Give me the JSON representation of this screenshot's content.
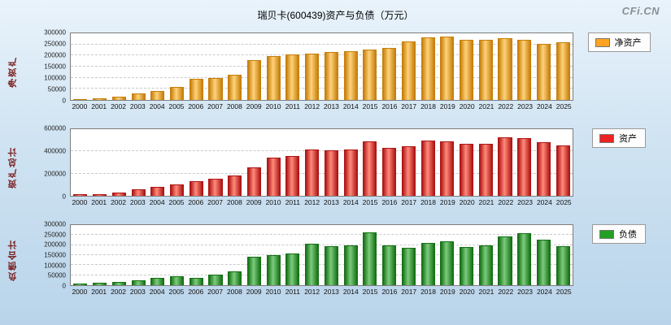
{
  "title": "瑞贝卡(600439)资产与负债（万元）",
  "logo": "CFi.CN",
  "chart_data": [
    {
      "type": "bar",
      "name": "net-assets",
      "title": "净资产",
      "ylabel": "净资产",
      "legend": "净资产",
      "color_main": "#FFA321",
      "color_light": "#FFD27A",
      "color_dark": "#C67E0A",
      "ylim": [
        0,
        300000
      ],
      "yticks": [
        0,
        50000,
        100000,
        150000,
        200000,
        250000,
        300000
      ],
      "grid": true,
      "legend_position": "right-top",
      "categories": [
        "2000",
        "2001",
        "2002",
        "2003",
        "2004",
        "2005",
        "2006",
        "2007",
        "2008",
        "2009",
        "2010",
        "2011",
        "2012",
        "2013",
        "2014",
        "2015",
        "2016",
        "2017",
        "2018",
        "2019",
        "2020",
        "2021",
        "2022",
        "2023",
        "2024",
        "2025"
      ],
      "values": [
        4000,
        9000,
        15000,
        30000,
        42000,
        58000,
        95000,
        98000,
        115000,
        180000,
        196000,
        205000,
        210000,
        215000,
        220000,
        226000,
        235000,
        265000,
        280000,
        285000,
        272000,
        270000,
        278000,
        272000,
        252000,
        258000
      ]
    },
    {
      "type": "bar",
      "name": "total-assets",
      "title": "资产总计",
      "ylabel": "资产总计",
      "legend": "资产",
      "color_main": "#EE2222",
      "color_light": "#FF8A7A",
      "color_dark": "#AE1414",
      "ylim": [
        0,
        600000
      ],
      "yticks": [
        0,
        200000,
        400000,
        600000
      ],
      "grid": true,
      "legend_position": "right-top",
      "categories": [
        "2000",
        "2001",
        "2002",
        "2003",
        "2004",
        "2005",
        "2006",
        "2007",
        "2008",
        "2009",
        "2010",
        "2011",
        "2012",
        "2013",
        "2014",
        "2015",
        "2016",
        "2017",
        "2018",
        "2019",
        "2020",
        "2021",
        "2022",
        "2023",
        "2024",
        "2025"
      ],
      "values": [
        12000,
        18000,
        28000,
        55000,
        80000,
        105000,
        130000,
        155000,
        185000,
        255000,
        345000,
        360000,
        420000,
        410000,
        420000,
        490000,
        435000,
        450000,
        495000,
        490000,
        465000,
        470000,
        525000,
        520000,
        480000,
        455000
      ]
    },
    {
      "type": "bar",
      "name": "total-liabilities",
      "title": "负债合计",
      "ylabel": "负债合计",
      "legend": "负债",
      "color_main": "#22A022",
      "color_light": "#7CCB7C",
      "color_dark": "#147014",
      "ylim": [
        0,
        300000
      ],
      "yticks": [
        0,
        50000,
        100000,
        150000,
        200000,
        250000,
        300000
      ],
      "grid": true,
      "legend_position": "right-top",
      "categories": [
        "2000",
        "2001",
        "2002",
        "2003",
        "2004",
        "2005",
        "2006",
        "2007",
        "2008",
        "2009",
        "2010",
        "2011",
        "2012",
        "2013",
        "2014",
        "2015",
        "2016",
        "2017",
        "2018",
        "2019",
        "2020",
        "2021",
        "2022",
        "2023",
        "2024",
        "2025"
      ],
      "values": [
        8000,
        11000,
        15000,
        24000,
        38000,
        46000,
        38000,
        52000,
        70000,
        140000,
        152000,
        158000,
        207000,
        195000,
        197000,
        262000,
        200000,
        185000,
        212000,
        220000,
        192000,
        200000,
        245000,
        258000,
        228000,
        195000
      ]
    }
  ]
}
